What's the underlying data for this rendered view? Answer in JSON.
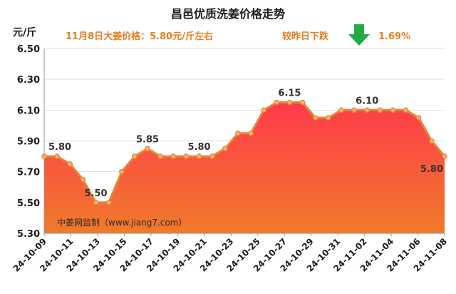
{
  "chart_data": {
    "type": "area",
    "title": "昌邑优质洗姜价格走势",
    "subtitle": "11月8日大姜价格：5.80元/斤左右",
    "change_text": "较昨日下跌",
    "change_icon": "down-arrow-icon",
    "change_value": "1.69%",
    "ylabel": "元/斤",
    "watermark": "中姜网监制（www.jiang7.com）",
    "ylim": [
      5.3,
      6.5
    ],
    "yticks": [
      "5.30",
      "5.50",
      "5.70",
      "5.90",
      "6.10",
      "6.30",
      "6.50"
    ],
    "x_tick_labels": [
      "24-10-09",
      "24-10-11",
      "24-10-13",
      "24-10-15",
      "24-10-17",
      "24-10-19",
      "24-10-21",
      "24-10-23",
      "24-10-25",
      "24-10-27",
      "24-10-29",
      "24-10-31",
      "24-11-02",
      "24-11-04",
      "24-11-06",
      "24-11-08"
    ],
    "values": [
      5.8,
      5.8,
      5.75,
      5.65,
      5.5,
      5.5,
      5.7,
      5.8,
      5.85,
      5.8,
      5.8,
      5.8,
      5.8,
      5.8,
      5.85,
      5.95,
      5.95,
      6.1,
      6.15,
      6.15,
      6.15,
      6.05,
      6.05,
      6.1,
      6.1,
      6.1,
      6.1,
      6.1,
      6.1,
      6.05,
      5.9,
      5.8
    ],
    "data_labels": [
      {
        "index": 0,
        "text": "5.80"
      },
      {
        "index": 4,
        "text": "5.50"
      },
      {
        "index": 8,
        "text": "5.85"
      },
      {
        "index": 12,
        "text": "5.80"
      },
      {
        "index": 19,
        "text": "6.15"
      },
      {
        "index": 25,
        "text": "6.10"
      },
      {
        "index": 31,
        "text": "5.80"
      }
    ],
    "grid": true,
    "colors": {
      "line": "#e8833a",
      "marker_fill": "#f6b26b",
      "fill_top": "#ff3b4a",
      "fill_bottom": "#f07a2a",
      "subtitle": "#e67e22",
      "arrow": "#22aa44",
      "grid": "#dddddd"
    }
  }
}
